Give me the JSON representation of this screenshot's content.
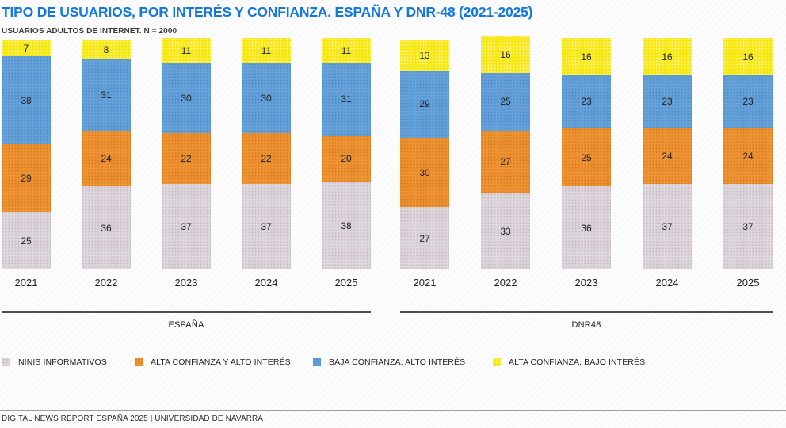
{
  "header": {
    "title": "TIPO DE USUARIOS, POR INTERÉS Y CONFIANZA. ESPAÑA Y DNR-48 (2021-2025)",
    "subtitle": "USUARIOS ADULTOS DE INTERNET. N = 2000"
  },
  "chart_data": {
    "type": "bar",
    "stacked": true,
    "title": "TIPO DE USUARIOS, POR INTERÉS Y CONFIANZA. ESPAÑA Y DNR-48 (2021-2025)",
    "legend_position": "bottom",
    "grid": false,
    "groups": [
      {
        "label": "ESPAÑA",
        "categories": [
          "2021",
          "2022",
          "2023",
          "2024",
          "2025"
        ],
        "series": [
          {
            "name": "NINIS INFORMATIVOS",
            "values": [
              25,
              36,
              37,
              37,
              38
            ]
          },
          {
            "name": "ALTA CONFIANZA Y ALTO INTERÉS",
            "values": [
              29,
              24,
              22,
              22,
              20
            ]
          },
          {
            "name": "BAJA CONFIANZA, ALTO INTERÉS",
            "values": [
              38,
              31,
              30,
              30,
              31
            ]
          },
          {
            "name": "ALTA CONFIANZA, BAJO INTERÉS",
            "values": [
              7,
              8,
              11,
              11,
              11
            ]
          }
        ]
      },
      {
        "label": "DNR48",
        "categories": [
          "2021",
          "2022",
          "2023",
          "2024",
          "2025"
        ],
        "series": [
          {
            "name": "NINIS INFORMATIVOS",
            "values": [
              27,
              33,
              36,
              37,
              37
            ]
          },
          {
            "name": "ALTA CONFIANZA Y ALTO INTERÉS",
            "values": [
              30,
              27,
              25,
              24,
              24
            ]
          },
          {
            "name": "BAJA CONFIANZA, ALTO INTERÉS",
            "values": [
              29,
              25,
              23,
              23,
              23
            ]
          },
          {
            "name": "ALTA CONFIANZA, BAJO INTERÉS",
            "values": [
              13,
              16,
              16,
              16,
              16
            ]
          }
        ]
      }
    ],
    "legend": [
      {
        "label": "NINIS INFORMATIVOS",
        "color": "#DCD8DE"
      },
      {
        "label": "ALTA CONFIANZA Y ALTO INTERÉS",
        "color": "#EE9434"
      },
      {
        "label": "BAJA CONFIANZA, ALTO INTERÉS",
        "color": "#68A2D8"
      },
      {
        "label": "ALTA CONFIANZA, BAJO INTERÉS",
        "color": "#F6E70D"
      }
    ]
  },
  "footer": {
    "text": "DIGITAL NEWS REPORT ESPAÑA 2025 | UNIVERSIDAD DE NAVARRA"
  }
}
